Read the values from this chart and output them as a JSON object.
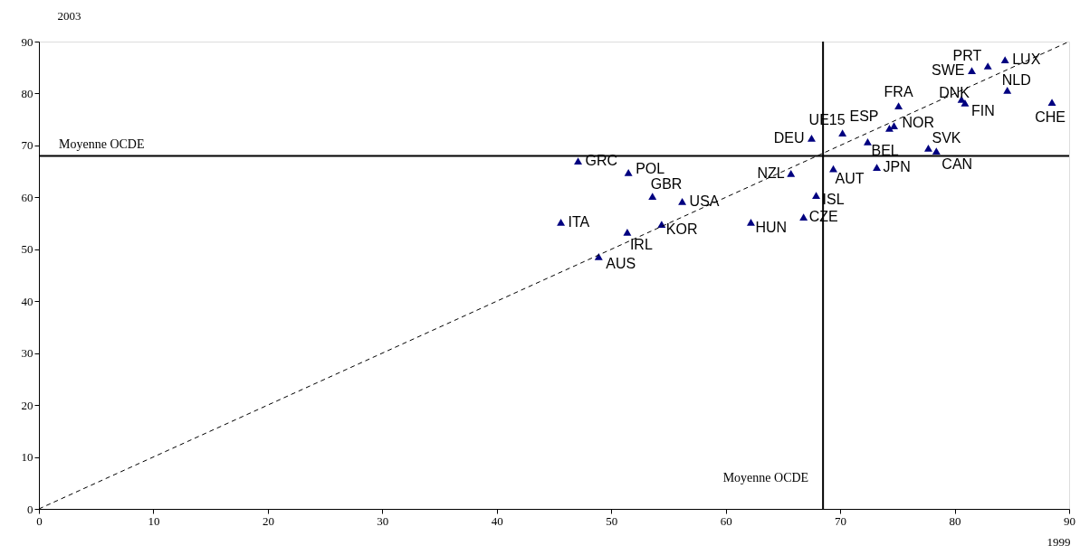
{
  "chart_data": {
    "type": "scatter",
    "xlabel": "1999",
    "ylabel": "2003",
    "xlim": [
      0,
      90
    ],
    "ylim": [
      0,
      90
    ],
    "xticks": [
      0,
      10,
      20,
      30,
      40,
      50,
      60,
      70,
      80,
      90
    ],
    "yticks": [
      0,
      10,
      20,
      30,
      40,
      50,
      60,
      70,
      80,
      90
    ],
    "grid": false,
    "marker": "triangle",
    "series": [
      {
        "color": "#000080",
        "x": [
          47.1,
          51.5,
          53.6,
          56.2,
          45.6,
          54.4,
          51.4,
          48.9,
          62.2,
          66.8,
          67.9,
          65.7,
          69.4,
          73.2,
          67.5,
          70.2,
          72.4,
          74.3,
          74.7,
          75.1,
          77.7,
          78.4,
          80.6,
          80.9,
          81.5,
          82.9,
          84.4,
          84.6,
          88.5
        ],
        "values": [
          67.0,
          64.8,
          60.2,
          59.2,
          55.2,
          54.8,
          53.3,
          48.6,
          55.2,
          56.2,
          60.4,
          64.6,
          65.5,
          65.8,
          71.4,
          72.4,
          70.7,
          73.3,
          73.8,
          77.6,
          69.5,
          68.9,
          78.9,
          78.2,
          84.4,
          85.3,
          86.5,
          80.6,
          78.3
        ]
      },
      {
        "type": "line",
        "color": "#000000",
        "line_style": "dashed",
        "marker": "none",
        "x": [
          0,
          90
        ],
        "values": [
          0,
          90
        ]
      }
    ],
    "ref_lines": [
      {
        "axis": "x",
        "value": 68.5,
        "label": "Moyenne OCDE",
        "color": "#000000"
      },
      {
        "axis": "y",
        "value": 68,
        "label": "Moyenne OCDE",
        "color": "#000000"
      }
    ],
    "annotations": [
      {
        "text": "GRC",
        "x": 47.1,
        "y": 67.0
      },
      {
        "text": "POL",
        "x": 51.5,
        "y": 64.8
      },
      {
        "text": "GBR",
        "x": 53.6,
        "y": 60.2
      },
      {
        "text": "USA",
        "x": 56.2,
        "y": 59.2
      },
      {
        "text": "ITA",
        "x": 45.6,
        "y": 55.2
      },
      {
        "text": "KOR",
        "x": 54.4,
        "y": 54.8
      },
      {
        "text": "IRL",
        "x": 51.4,
        "y": 53.3
      },
      {
        "text": "AUS",
        "x": 48.9,
        "y": 48.6
      },
      {
        "text": "HUN",
        "x": 62.2,
        "y": 55.2
      },
      {
        "text": "CZE",
        "x": 66.8,
        "y": 56.2
      },
      {
        "text": "ISL",
        "x": 67.9,
        "y": 60.4
      },
      {
        "text": "NZL",
        "x": 65.7,
        "y": 64.6
      },
      {
        "text": "AUT",
        "x": 69.4,
        "y": 65.5
      },
      {
        "text": "JPN",
        "x": 73.2,
        "y": 65.8
      },
      {
        "text": "DEU",
        "x": 67.5,
        "y": 71.4
      },
      {
        "text": "UE15",
        "x": 70.2,
        "y": 72.4
      },
      {
        "text": "BEL",
        "x": 72.4,
        "y": 70.7
      },
      {
        "text": "ESP",
        "x": 74.3,
        "y": 73.3
      },
      {
        "text": "NOR",
        "x": 74.7,
        "y": 73.8
      },
      {
        "text": "FRA",
        "x": 75.1,
        "y": 77.6
      },
      {
        "text": "SVK",
        "x": 77.7,
        "y": 69.5
      },
      {
        "text": "CAN",
        "x": 78.4,
        "y": 68.9
      },
      {
        "text": "DNK",
        "x": 80.6,
        "y": 78.9
      },
      {
        "text": "FIN",
        "x": 80.9,
        "y": 78.2
      },
      {
        "text": "SWE",
        "x": 81.5,
        "y": 84.4
      },
      {
        "text": "PRT",
        "x": 82.9,
        "y": 85.3
      },
      {
        "text": "LUX",
        "x": 84.4,
        "y": 86.5
      },
      {
        "text": "NLD",
        "x": 84.6,
        "y": 80.6
      },
      {
        "text": "CHE",
        "x": 88.5,
        "y": 78.3
      }
    ]
  }
}
